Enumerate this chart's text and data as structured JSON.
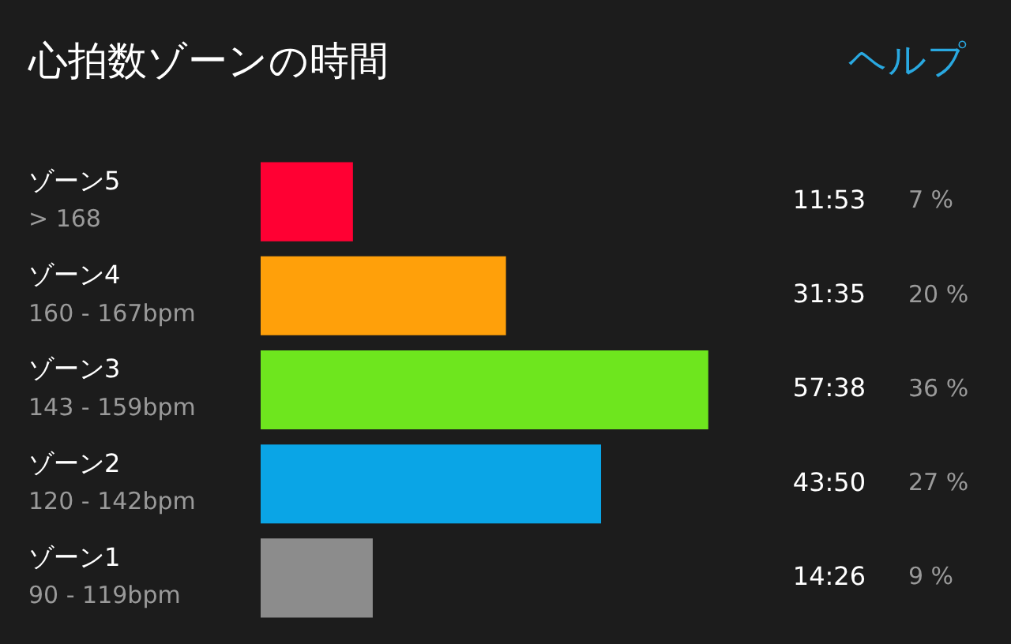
{
  "chart_data": {
    "type": "bar",
    "orientation": "horizontal",
    "title": "心拍数ゾーンの時間",
    "categories": [
      "ゾーン5\n> 168",
      "ゾーン4\n160 - 167bpm",
      "ゾーン3\n143 - 159bpm",
      "ゾーン2\n120 - 142bpm",
      "ゾーン1\n90 - 119bpm"
    ],
    "values": [
      11.883,
      31.583,
      57.633,
      43.833,
      14.433
    ],
    "colors": [
      "#ff0033",
      "#ffa00a",
      "#6ee61e",
      "#0aa5e6",
      "#8c8c8c"
    ],
    "value_labels": [
      "11:53",
      "31:35",
      "57:38",
      "43:50",
      "14:26"
    ],
    "annotations": [
      "ヘルプ",
      "7 %",
      "20 %",
      "36 %",
      "27 %",
      "9 %"
    ]
  }
}
